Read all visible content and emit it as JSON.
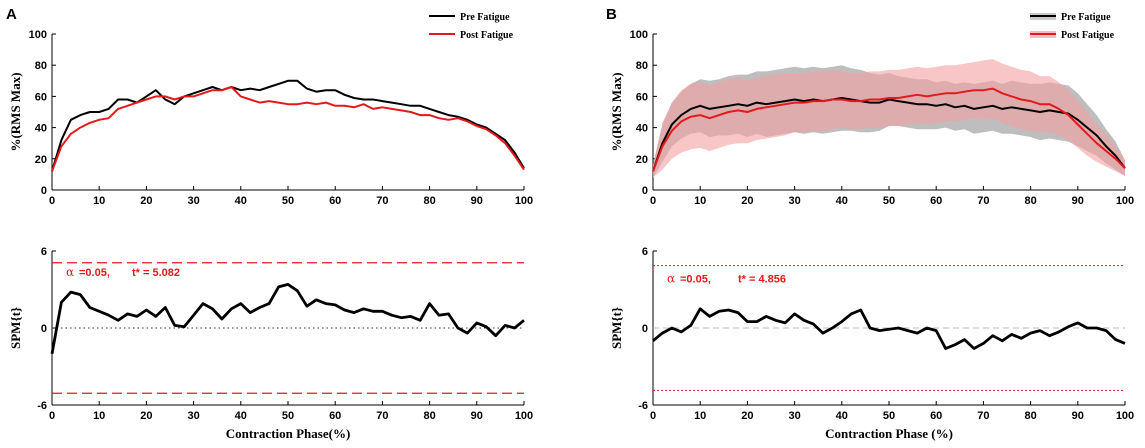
{
  "colors": {
    "pre": "#000000",
    "post": "#e31a1c",
    "pre_band": "#b3b3b3",
    "post_band": "#f4a0a0",
    "threshold": "#e31a1c"
  },
  "chart_data": [
    {
      "panel": "A",
      "type": "line",
      "ylabel": "%(RMS Max)",
      "xlim": [
        0,
        100
      ],
      "ylim": [
        0,
        100
      ],
      "xticks": [
        "0",
        "10",
        "20",
        "30",
        "40",
        "50",
        "60",
        "70",
        "80",
        "90",
        "100"
      ],
      "yticks": [
        "0",
        "20",
        "40",
        "60",
        "80",
        "100"
      ],
      "legend": {
        "position": "top-right",
        "entries": [
          "Pre Fatigue",
          "Post Fatigue"
        ]
      },
      "x": [
        0,
        2,
        4,
        6,
        8,
        10,
        12,
        14,
        16,
        18,
        20,
        22,
        24,
        26,
        28,
        30,
        32,
        34,
        36,
        38,
        40,
        42,
        44,
        46,
        48,
        50,
        52,
        54,
        56,
        58,
        60,
        62,
        64,
        66,
        68,
        70,
        72,
        74,
        76,
        78,
        80,
        82,
        84,
        86,
        88,
        90,
        92,
        94,
        96,
        98,
        100
      ],
      "series": [
        {
          "name": "Pre Fatigue",
          "values": [
            12,
            32,
            45,
            48,
            50,
            50,
            52,
            58,
            58,
            56,
            60,
            64,
            58,
            55,
            60,
            62,
            64,
            66,
            64,
            66,
            64,
            65,
            64,
            66,
            68,
            70,
            70,
            65,
            63,
            64,
            64,
            61,
            59,
            58,
            58,
            57,
            56,
            55,
            54,
            54,
            52,
            50,
            48,
            47,
            45,
            42,
            40,
            36,
            32,
            24,
            14
          ]
        },
        {
          "name": "Post Fatigue",
          "values": [
            12,
            28,
            36,
            40,
            43,
            45,
            46,
            52,
            54,
            56,
            58,
            60,
            60,
            58,
            60,
            60,
            62,
            64,
            64,
            66,
            60,
            58,
            56,
            57,
            56,
            55,
            55,
            56,
            55,
            56,
            54,
            54,
            53,
            55,
            52,
            53,
            52,
            51,
            50,
            48,
            48,
            46,
            45,
            46,
            44,
            41,
            39,
            35,
            30,
            22,
            13
          ]
        }
      ]
    },
    {
      "panel": "A",
      "type": "line",
      "xlabel": "Contraction Phase(%)",
      "ylabel": "SPM{t}",
      "xlim": [
        0,
        100
      ],
      "ylim": [
        -6,
        6
      ],
      "xticks": [
        "0",
        "10",
        "20",
        "30",
        "40",
        "50",
        "60",
        "70",
        "80",
        "90",
        "100"
      ],
      "yticks": [
        "-6",
        "0",
        "6"
      ],
      "alpha": "=0.05,",
      "t_star": "t* = 5.082",
      "threshold": 5.082,
      "x": [
        0,
        2,
        4,
        6,
        8,
        10,
        12,
        14,
        16,
        18,
        20,
        22,
        24,
        26,
        28,
        30,
        32,
        34,
        36,
        38,
        40,
        42,
        44,
        46,
        48,
        50,
        52,
        54,
        56,
        58,
        60,
        62,
        64,
        66,
        68,
        70,
        72,
        74,
        76,
        78,
        80,
        82,
        84,
        86,
        88,
        90,
        92,
        94,
        96,
        98,
        100
      ],
      "series": [
        {
          "name": "",
          "values": [
            -2,
            2.0,
            2.8,
            2.6,
            1.6,
            1.3,
            1.0,
            0.6,
            1.1,
            0.9,
            1.4,
            0.9,
            1.6,
            0.2,
            0.1,
            1.0,
            1.9,
            1.5,
            0.7,
            1.5,
            1.9,
            1.2,
            1.6,
            1.9,
            3.2,
            3.4,
            2.9,
            1.7,
            2.2,
            1.9,
            1.8,
            1.4,
            1.2,
            1.5,
            1.3,
            1.3,
            1.0,
            0.8,
            0.9,
            0.6,
            1.9,
            1.0,
            1.1,
            0.0,
            -0.4,
            0.4,
            0.1,
            -0.6,
            0.2,
            0.0,
            0.6
          ]
        }
      ]
    },
    {
      "panel": "B",
      "type": "line",
      "ylabel": "%(RMS Max)",
      "xlim": [
        0,
        100
      ],
      "ylim": [
        0,
        100
      ],
      "xticks": [
        "0",
        "10",
        "20",
        "30",
        "40",
        "50",
        "60",
        "70",
        "80",
        "90",
        "100"
      ],
      "yticks": [
        "0",
        "20",
        "40",
        "60",
        "80",
        "100"
      ],
      "legend": {
        "position": "top-right",
        "entries": [
          "Pre Fatigue",
          "Post Fatigue"
        ]
      },
      "x": [
        0,
        2,
        4,
        6,
        8,
        10,
        12,
        14,
        16,
        18,
        20,
        22,
        24,
        26,
        28,
        30,
        32,
        34,
        36,
        38,
        40,
        42,
        44,
        46,
        48,
        50,
        52,
        54,
        56,
        58,
        60,
        62,
        64,
        66,
        68,
        70,
        72,
        74,
        76,
        78,
        80,
        82,
        84,
        86,
        88,
        90,
        92,
        94,
        96,
        98,
        100
      ],
      "series": [
        {
          "name": "Pre Fatigue",
          "values": [
            12,
            30,
            42,
            48,
            52,
            54,
            52,
            53,
            54,
            55,
            54,
            56,
            55,
            56,
            57,
            58,
            57,
            58,
            57,
            58,
            59,
            58,
            57,
            56,
            56,
            58,
            57,
            56,
            55,
            55,
            54,
            55,
            53,
            54,
            52,
            53,
            54,
            52,
            53,
            52,
            51,
            50,
            51,
            50,
            49,
            45,
            40,
            35,
            28,
            22,
            14
          ],
          "sd": [
            4,
            12,
            14,
            15,
            16,
            17,
            18,
            18,
            19,
            19,
            20,
            20,
            21,
            21,
            21,
            21,
            21,
            21,
            21,
            21,
            21,
            20,
            20,
            19,
            18,
            17,
            16,
            16,
            16,
            16,
            15,
            15,
            15,
            15,
            16,
            16,
            16,
            16,
            17,
            17,
            17,
            18,
            18,
            18,
            18,
            17,
            15,
            13,
            11,
            9,
            5
          ]
        },
        {
          "name": "Post Fatigue",
          "values": [
            12,
            28,
            38,
            44,
            47,
            48,
            46,
            48,
            50,
            51,
            50,
            52,
            53,
            54,
            55,
            56,
            56,
            57,
            57,
            58,
            58,
            57,
            57,
            58,
            58,
            59,
            59,
            60,
            61,
            60,
            61,
            62,
            62,
            63,
            64,
            64,
            65,
            62,
            60,
            58,
            57,
            55,
            55,
            52,
            48,
            42,
            36,
            30,
            25,
            20,
            14
          ],
          "sd": [
            4,
            15,
            18,
            20,
            21,
            21,
            21,
            21,
            21,
            21,
            20,
            20,
            20,
            20,
            20,
            19,
            19,
            19,
            19,
            19,
            18,
            18,
            18,
            18,
            18,
            18,
            18,
            18,
            18,
            18,
            18,
            18,
            18,
            18,
            18,
            19,
            19,
            19,
            19,
            19,
            19,
            18,
            18,
            17,
            16,
            15,
            14,
            12,
            10,
            8,
            5
          ]
        }
      ]
    },
    {
      "panel": "B",
      "type": "line",
      "xlabel": "Contraction Phase (%)",
      "ylabel": "SPM{t}",
      "xlim": [
        0,
        100
      ],
      "ylim": [
        -6,
        6
      ],
      "xticks": [
        "0",
        "10",
        "20",
        "30",
        "40",
        "50",
        "60",
        "70",
        "80",
        "90",
        "100"
      ],
      "yticks": [
        "-6",
        "0",
        "6"
      ],
      "alpha": "=0.05,",
      "t_star": "t* = 4.856",
      "threshold": 4.856,
      "x": [
        0,
        2,
        4,
        6,
        8,
        10,
        12,
        14,
        16,
        18,
        20,
        22,
        24,
        26,
        28,
        30,
        32,
        34,
        36,
        38,
        40,
        42,
        44,
        46,
        48,
        50,
        52,
        54,
        56,
        58,
        60,
        62,
        64,
        66,
        68,
        70,
        72,
        74,
        76,
        78,
        80,
        82,
        84,
        86,
        88,
        90,
        92,
        94,
        96,
        98,
        100
      ],
      "series": [
        {
          "name": "",
          "values": [
            -1,
            -0.4,
            0.0,
            -0.3,
            0.2,
            1.5,
            0.9,
            1.3,
            1.4,
            1.2,
            0.5,
            0.5,
            0.9,
            0.6,
            0.4,
            1.1,
            0.6,
            0.3,
            -0.4,
            0.0,
            0.5,
            1.1,
            1.4,
            0.0,
            -0.2,
            -0.1,
            0.0,
            -0.2,
            -0.4,
            0.0,
            -0.2,
            -1.6,
            -1.3,
            -0.9,
            -1.6,
            -1.2,
            -0.6,
            -1.0,
            -0.5,
            -0.8,
            -0.4,
            -0.2,
            -0.6,
            -0.3,
            0.1,
            0.4,
            0.0,
            0.0,
            -0.2,
            -0.9,
            -1.2
          ]
        }
      ]
    }
  ]
}
